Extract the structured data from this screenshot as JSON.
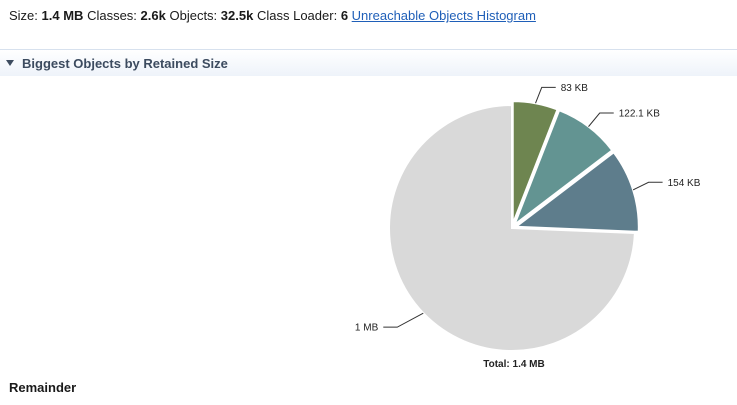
{
  "stats": {
    "size_label": "Size:",
    "size_value": "1.4 MB",
    "classes_label": "Classes:",
    "classes_value": "2.6k",
    "objects_label": "Objects:",
    "objects_value": "32.5k",
    "loader_label": "Class Loader:",
    "loader_value": "6",
    "histogram_link": "Unreachable Objects Histogram"
  },
  "section": {
    "title": "Biggest Objects by Retained Size"
  },
  "remainder_label": "Remainder",
  "chart_data": {
    "type": "pie",
    "title": "",
    "total_label": "Total: 1.4 MB",
    "slices": [
      {
        "label": "83 KB",
        "value": 83,
        "color": "#6e8550",
        "exploded": true
      },
      {
        "label": "122.1 KB",
        "value": 122.1,
        "color": "#639492",
        "exploded": true
      },
      {
        "label": "154 KB",
        "value": 154,
        "color": "#5e7d8c",
        "exploded": true
      },
      {
        "label": "1 MB",
        "value": 1041,
        "color": "#d9d9d9",
        "exploded": false
      }
    ]
  }
}
